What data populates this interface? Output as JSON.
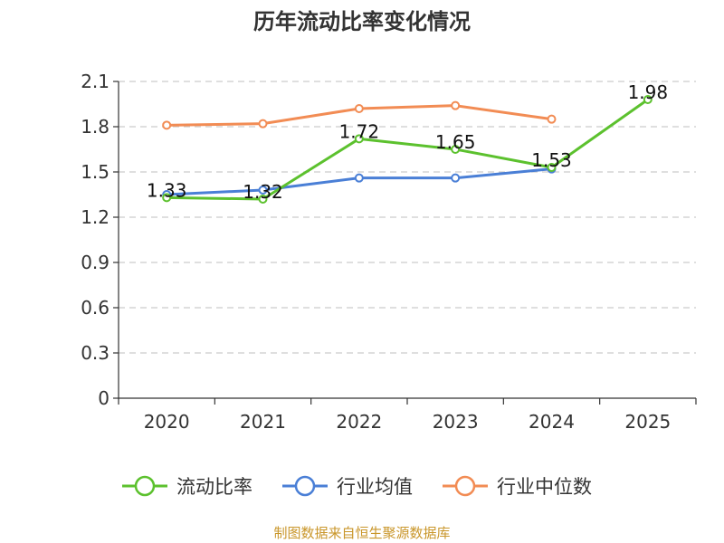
{
  "chart_data": {
    "type": "line",
    "title": "历年流动比率变化情况",
    "categories": [
      "2020",
      "2021",
      "2022",
      "2023",
      "2024",
      "2025"
    ],
    "ylim": [
      0,
      2.1
    ],
    "yticks": [
      "0",
      "0.3",
      "0.6",
      "0.9",
      "1.2",
      "1.5",
      "1.8",
      "2.1"
    ],
    "grid": true,
    "legend_position": "bottom",
    "series": [
      {
        "name": "流动比率",
        "color": "#5cc12e",
        "values": [
          1.33,
          1.32,
          1.72,
          1.65,
          1.53,
          1.98
        ],
        "labels": [
          "1.33",
          "1.32",
          "1.72",
          "1.65",
          "1.53",
          "1.98"
        ]
      },
      {
        "name": "行业均值",
        "color": "#4a7fd6",
        "values": [
          1.35,
          1.38,
          1.46,
          1.46,
          1.52,
          null
        ]
      },
      {
        "name": "行业中位数",
        "color": "#f28c54",
        "values": [
          1.81,
          1.82,
          1.92,
          1.94,
          1.85,
          null
        ]
      }
    ],
    "source": "制图数据来自恒生聚源数据库"
  }
}
